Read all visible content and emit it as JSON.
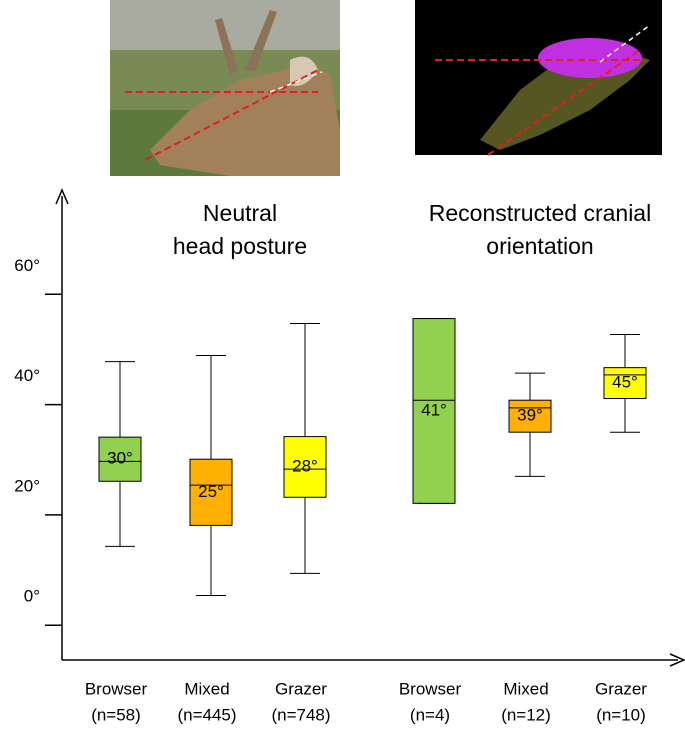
{
  "chart_data": {
    "type": "box",
    "group_titles": [
      [
        "Neutral",
        "head posture"
      ],
      [
        "Reconstructed cranial",
        "orientation"
      ]
    ],
    "categories": [
      "Browser",
      "Mixed",
      "Grazer",
      "Browser",
      "Mixed",
      "Grazer"
    ],
    "counts": [
      "(n=58)",
      "(n=445)",
      "(n=748)",
      "(n=4)",
      "(n=12)",
      "(n=10)"
    ],
    "boxes": [
      {
        "whisker_low": 14.3,
        "q1": 26.1,
        "median": 29.7,
        "q3": 34.1,
        "whisker_high": 47.8,
        "value_label": "30°",
        "color": "#92d050"
      },
      {
        "whisker_low": 5.4,
        "q1": 18.1,
        "median": 25.4,
        "q3": 30.1,
        "whisker_high": 48.9,
        "value_label": "25°",
        "color": "#ffb000"
      },
      {
        "whisker_low": 9.4,
        "q1": 23.2,
        "median": 28.3,
        "q3": 34.2,
        "whisker_high": 54.7,
        "value_label": "28°",
        "color": "#ffff00"
      },
      {
        "whisker_low": 22.1,
        "q1": 22.1,
        "median": 40.8,
        "q3": 55.6,
        "whisker_high": 55.6,
        "value_label": "41°",
        "color": "#92d050"
      },
      {
        "whisker_low": 27.0,
        "q1": 35.0,
        "median": 39.4,
        "q3": 40.8,
        "whisker_high": 45.7,
        "value_label": "39°",
        "color": "#ffb000"
      },
      {
        "whisker_low": 35.0,
        "q1": 41.1,
        "median": 45.4,
        "q3": 46.7,
        "whisker_high": 52.7,
        "value_label": "45°",
        "color": "#ffff00"
      }
    ],
    "ylim": [
      -6.3,
      78
    ],
    "yticks": [
      {
        "value": 0,
        "label": "0°"
      },
      {
        "value": 20,
        "label": "20°"
      },
      {
        "value": 40,
        "label": "40°"
      },
      {
        "value": 60,
        "label": "60°"
      }
    ]
  }
}
